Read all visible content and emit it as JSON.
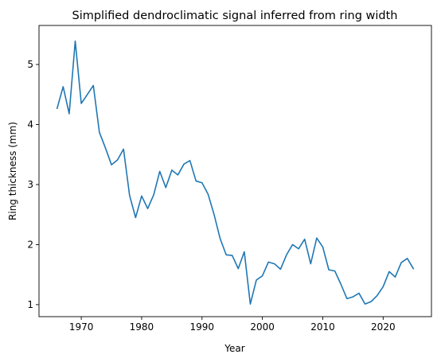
{
  "chart_data": {
    "type": "line",
    "title": "Simplified dendroclimatic signal inferred from ring width",
    "xlabel": "Year",
    "ylabel": "Ring thickness (mm)",
    "xlim": [
      1963,
      2028
    ],
    "ylim": [
      0.8,
      5.65
    ],
    "xticks": [
      1970,
      1980,
      1990,
      2000,
      2010,
      2020
    ],
    "yticks": [
      1,
      2,
      3,
      4,
      5
    ],
    "grid": false,
    "legend": "none",
    "series": [
      {
        "color": "#1f77b4",
        "x": [
          1966,
          1967,
          1968,
          1969,
          1970,
          1971,
          1972,
          1973,
          1974,
          1975,
          1976,
          1977,
          1978,
          1979,
          1980,
          1981,
          1982,
          1983,
          1984,
          1985,
          1986,
          1987,
          1988,
          1989,
          1990,
          1991,
          1992,
          1993,
          1994,
          1995,
          1996,
          1997,
          1998,
          1999,
          2000,
          2001,
          2002,
          2003,
          2004,
          2005,
          2006,
          2007,
          2008,
          2009,
          2010,
          2011,
          2012,
          2013,
          2014,
          2015,
          2016,
          2017,
          2018,
          2019,
          2020,
          2021,
          2022,
          2023,
          2024,
          2025
        ],
        "y": [
          4.27,
          4.63,
          4.18,
          5.39,
          4.35,
          4.5,
          4.65,
          3.87,
          3.61,
          3.33,
          3.41,
          3.59,
          2.82,
          2.45,
          2.81,
          2.6,
          2.83,
          3.22,
          2.95,
          3.24,
          3.16,
          3.34,
          3.4,
          3.06,
          3.03,
          2.84,
          2.5,
          2.1,
          1.83,
          1.82,
          1.6,
          1.88,
          1.01,
          1.41,
          1.48,
          1.71,
          1.68,
          1.59,
          1.83,
          2.0,
          1.93,
          2.09,
          1.68,
          2.11,
          1.96,
          1.58,
          1.56,
          1.34,
          1.1,
          1.13,
          1.19,
          1.01,
          1.05,
          1.15,
          1.3,
          1.55,
          1.46,
          1.7,
          1.77,
          1.6
        ]
      }
    ]
  }
}
